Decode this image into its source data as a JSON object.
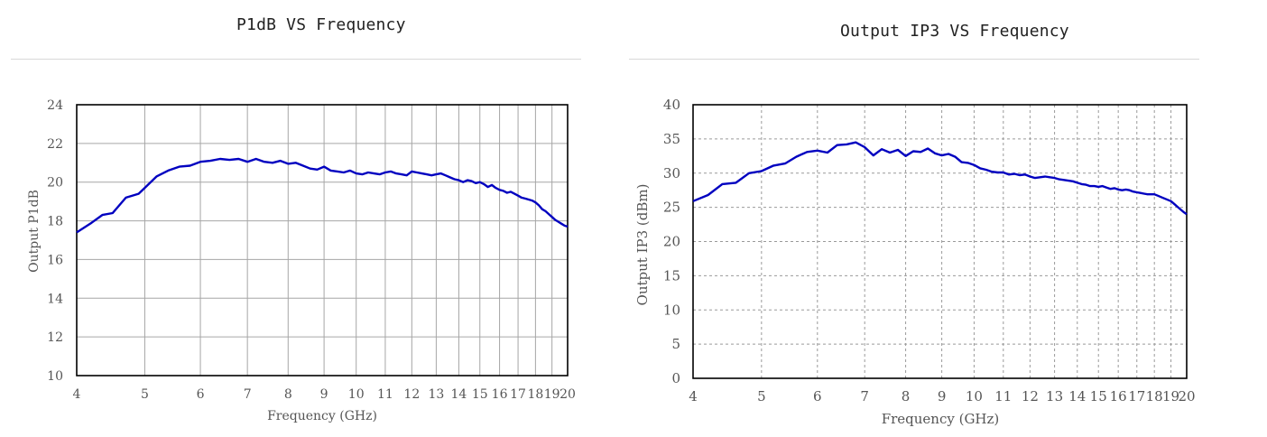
{
  "charts": [
    {
      "title": "P1dB VS Frequency",
      "chart_data": {
        "type": "line",
        "title": "P1dB VS Frequency",
        "xlabel": "Frequency (GHz)",
        "ylabel": "Output P1dB",
        "xscale": "log",
        "xlim": [
          4,
          20
        ],
        "ylim": [
          10,
          24
        ],
        "x_ticks": [
          4,
          5,
          6,
          7,
          8,
          9,
          10,
          11,
          12,
          13,
          14,
          15,
          16,
          17,
          18,
          19,
          20
        ],
        "y_ticks": [
          10,
          12,
          14,
          16,
          18,
          20,
          22,
          24
        ],
        "grid": "solid",
        "line_color": "#0000c0",
        "series": [
          {
            "x": [
              4.0,
              4.2,
              4.35,
              4.5,
              4.7,
              4.9,
              5.0,
              5.2,
              5.4,
              5.6,
              5.8,
              6.0,
              6.2,
              6.4,
              6.6,
              6.8,
              7.0,
              7.2,
              7.4,
              7.6,
              7.8,
              8.0,
              8.2,
              8.4,
              8.6,
              8.8,
              9.0,
              9.2,
              9.4,
              9.6,
              9.8,
              10.0,
              10.2,
              10.4,
              10.6,
              10.8,
              11.0,
              11.2,
              11.4,
              11.6,
              11.8,
              12.0,
              12.2,
              12.4,
              12.6,
              12.8,
              13.0,
              13.2,
              13.4,
              13.6,
              13.8,
              14.0,
              14.2,
              14.4,
              14.6,
              14.8,
              15.0,
              15.2,
              15.4,
              15.6,
              15.8,
              16.0,
              16.2,
              16.4,
              16.6,
              16.8,
              17.0,
              17.2,
              17.4,
              17.6,
              17.8,
              18.0,
              18.2,
              18.4,
              18.6,
              18.8,
              19.0,
              19.2,
              19.4,
              19.6,
              19.8,
              20.0
            ],
            "y": [
              17.4,
              17.9,
              18.3,
              18.4,
              19.2,
              19.4,
              19.7,
              20.3,
              20.6,
              20.8,
              20.85,
              21.05,
              21.1,
              21.2,
              21.15,
              21.2,
              21.05,
              21.2,
              21.05,
              21.0,
              21.1,
              20.95,
              21.0,
              20.85,
              20.7,
              20.65,
              20.8,
              20.6,
              20.55,
              20.5,
              20.6,
              20.45,
              20.4,
              20.5,
              20.45,
              20.4,
              20.5,
              20.55,
              20.45,
              20.4,
              20.35,
              20.55,
              20.5,
              20.45,
              20.4,
              20.35,
              20.4,
              20.45,
              20.35,
              20.25,
              20.15,
              20.1,
              20.0,
              20.1,
              20.05,
              19.95,
              20.0,
              19.9,
              19.75,
              19.85,
              19.7,
              19.6,
              19.55,
              19.45,
              19.5,
              19.4,
              19.3,
              19.2,
              19.15,
              19.1,
              19.05,
              18.95,
              18.8,
              18.6,
              18.5,
              18.35,
              18.2,
              18.05,
              17.95,
              17.85,
              17.75,
              17.7
            ]
          }
        ]
      }
    },
    {
      "title": "Output IP3 VS Frequency",
      "chart_data": {
        "type": "line",
        "title": "Output IP3 VS Frequency",
        "xlabel": "Frequency (GHz)",
        "ylabel": "Output IP3 (dBm)",
        "xscale": "log",
        "xlim": [
          4,
          20
        ],
        "ylim": [
          0,
          40
        ],
        "x_ticks": [
          4,
          5,
          6,
          7,
          8,
          9,
          10,
          11,
          12,
          13,
          14,
          15,
          16,
          17,
          18,
          19,
          20
        ],
        "y_ticks": [
          0,
          5,
          10,
          15,
          20,
          25,
          30,
          35,
          40
        ],
        "grid": "dashed",
        "line_color": "#0000c0",
        "series": [
          {
            "x": [
              4.0,
              4.2,
              4.4,
              4.6,
              4.8,
              5.0,
              5.2,
              5.4,
              5.6,
              5.8,
              6.0,
              6.2,
              6.4,
              6.6,
              6.8,
              7.0,
              7.2,
              7.4,
              7.6,
              7.8,
              8.0,
              8.2,
              8.4,
              8.6,
              8.8,
              9.0,
              9.2,
              9.4,
              9.6,
              9.8,
              10.0,
              10.2,
              10.4,
              10.6,
              10.8,
              11.0,
              11.2,
              11.4,
              11.6,
              11.8,
              12.0,
              12.2,
              12.4,
              12.6,
              12.8,
              13.0,
              13.2,
              13.4,
              13.6,
              13.8,
              14.0,
              14.2,
              14.4,
              14.6,
              14.8,
              15.0,
              15.2,
              15.4,
              15.6,
              15.8,
              16.0,
              16.2,
              16.4,
              16.6,
              16.8,
              17.0,
              17.2,
              17.4,
              17.6,
              17.8,
              18.0,
              18.2,
              18.4,
              18.6,
              18.8,
              19.0,
              19.2,
              19.4,
              19.6,
              19.8,
              20.0
            ],
            "y": [
              25.9,
              26.8,
              28.4,
              28.6,
              30.0,
              30.3,
              31.1,
              31.4,
              32.4,
              33.1,
              33.3,
              33.0,
              34.1,
              34.2,
              34.5,
              33.8,
              32.6,
              33.5,
              33.0,
              33.4,
              32.5,
              33.2,
              33.1,
              33.6,
              32.9,
              32.6,
              32.8,
              32.4,
              31.6,
              31.5,
              31.2,
              30.7,
              30.5,
              30.2,
              30.1,
              30.1,
              29.8,
              29.9,
              29.7,
              29.8,
              29.5,
              29.3,
              29.4,
              29.5,
              29.4,
              29.3,
              29.1,
              29.0,
              28.9,
              28.8,
              28.6,
              28.4,
              28.3,
              28.1,
              28.1,
              28.0,
              28.1,
              27.9,
              27.7,
              27.8,
              27.6,
              27.5,
              27.6,
              27.5,
              27.3,
              27.2,
              27.1,
              27.0,
              26.9,
              26.9,
              26.9,
              26.7,
              26.5,
              26.3,
              26.1,
              25.9,
              25.5,
              25.1,
              24.7,
              24.3,
              24.0
            ]
          }
        ]
      }
    }
  ]
}
